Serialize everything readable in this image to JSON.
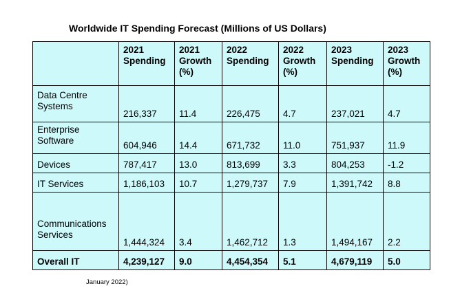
{
  "title": "Worldwide IT Spending Forecast (Millions of US Dollars)",
  "table": {
    "headers": [
      "",
      "2021\nSpending",
      "2021\nGrowth\n(%)",
      "2022\nSpending",
      "2022\nGrowth\n(%)",
      "2023\nSpending",
      "2023\nGrowth\n(%)"
    ],
    "rows": [
      [
        "Data Centre\nSystems",
        "216,337",
        "11.4",
        "226,475",
        "4.7",
        "237,021",
        "4.7"
      ],
      [
        "Enterprise\nSoftware",
        "604,946",
        "14.4",
        "671,732",
        "11.0",
        "751,937",
        "11.9"
      ],
      [
        "Devices",
        "787,417",
        "13.0",
        "813,699",
        "3.3",
        "804,253",
        "-1.2"
      ],
      [
        "IT Services",
        "1,186,103",
        "10.7",
        "1,279,737",
        "7.9",
        "1,391,742",
        "8.8"
      ],
      [
        "Communications\nServices",
        "1,444,324",
        "3.4",
        "1,462,712",
        "1.3",
        "1,494,167",
        "2.2"
      ],
      [
        "Overall IT",
        "4,239,127",
        "9.0",
        "4,454,354",
        "5.1",
        "4,679,119",
        "5.0"
      ]
    ]
  },
  "footnote": "January 2022)",
  "colors": {
    "table_background": "#cdf9fb",
    "border": "#000000"
  }
}
